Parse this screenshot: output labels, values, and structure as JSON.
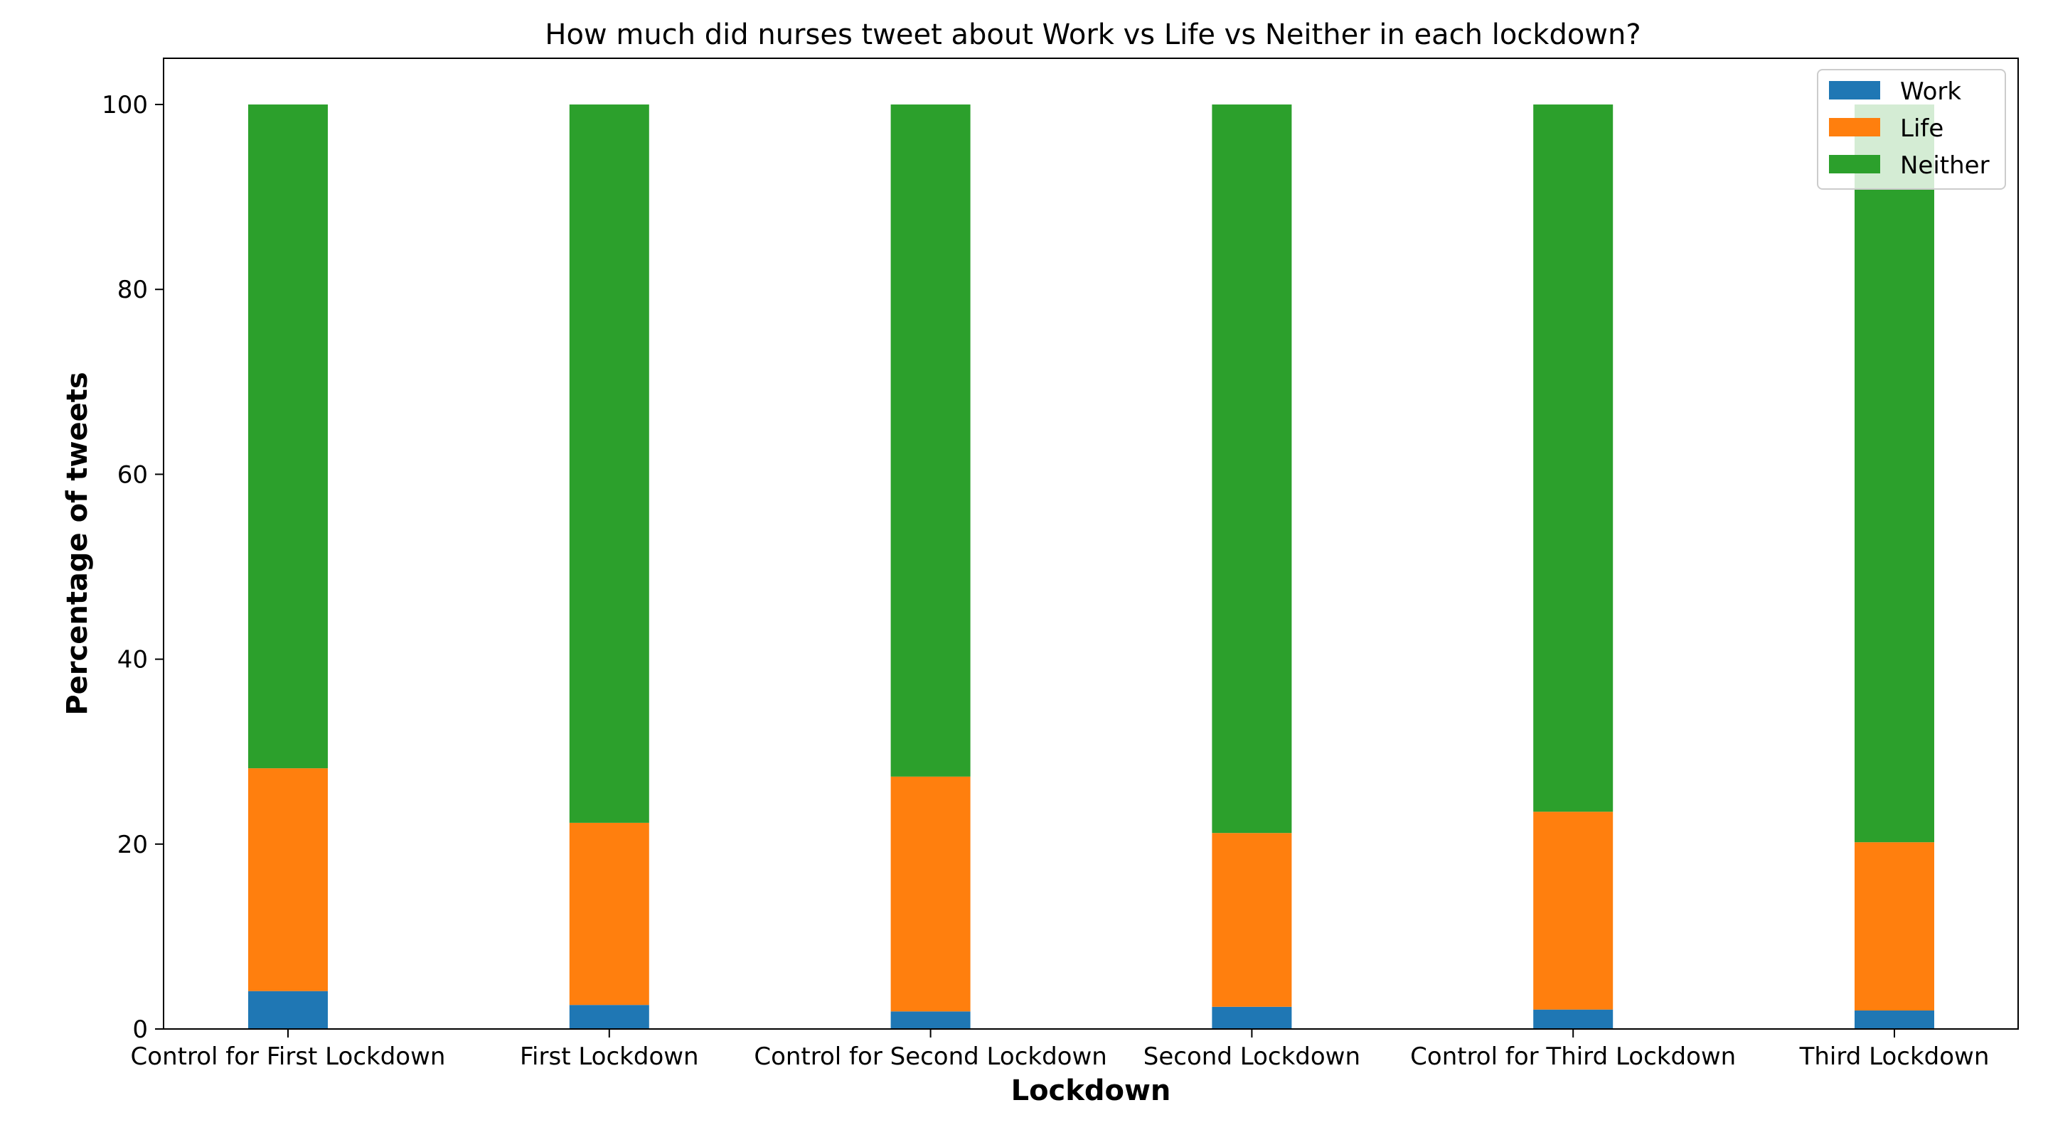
{
  "chart_data": {
    "type": "bar",
    "stacked": true,
    "title": "How much did nurses tweet about Work vs Life vs Neither in each lockdown?",
    "xlabel": "Lockdown",
    "ylabel": "Percentage of tweets",
    "ylim": [
      0,
      105
    ],
    "yticks": [
      0,
      20,
      40,
      60,
      80,
      100
    ],
    "grid": false,
    "legend_position": "top-right",
    "categories": [
      "Control for First Lockdown",
      "First Lockdown",
      "Control for Second Lockdown",
      "Second Lockdown",
      "Control for Third Lockdown",
      "Third Lockdown"
    ],
    "series": [
      {
        "name": "Work",
        "color": "#1f77b4",
        "values": [
          4.1,
          2.6,
          1.9,
          2.4,
          2.1,
          2.0
        ]
      },
      {
        "name": "Life",
        "color": "#ff7f0e",
        "values": [
          24.1,
          19.7,
          25.4,
          18.8,
          21.4,
          18.2
        ]
      },
      {
        "name": "Neither",
        "color": "#2ca02c",
        "values": [
          71.8,
          77.7,
          72.7,
          78.8,
          76.5,
          79.8
        ]
      }
    ]
  }
}
